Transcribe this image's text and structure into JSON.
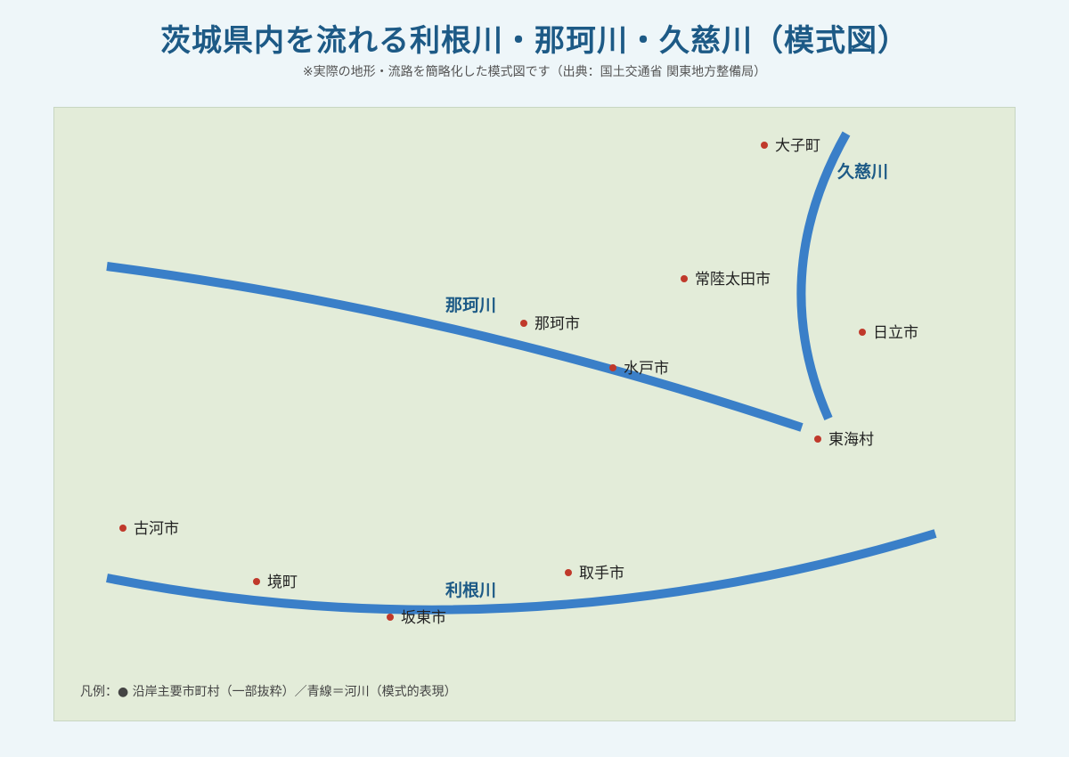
{
  "title": "茨城県内を流れる利根川・那珂川・久慈川（模式図）",
  "subtitle": "※実際の地形・流路を簡略化した模式図です（出典：国土交通省 関東地方整備局）",
  "legend": "凡例：● 沿岸主要市町村（一部抜粋）／青線＝河川（模式的表現）",
  "colors": {
    "title": "#1d5a86",
    "river": "#3a7fc8",
    "river_label": "#1d5a86",
    "city_dot": "#c0392b",
    "map_bg": "#e3ecd9"
  },
  "rivers": {
    "naka": {
      "label": "那珂川"
    },
    "tone": {
      "label": "利根川"
    },
    "kuji": {
      "label": "久慈川"
    }
  },
  "cities": [
    {
      "id": "daigo",
      "name": "大子町"
    },
    {
      "id": "hitachiota",
      "name": "常陸太田市"
    },
    {
      "id": "naka",
      "name": "那珂市"
    },
    {
      "id": "hitachi",
      "name": "日立市"
    },
    {
      "id": "mito",
      "name": "水戸市"
    },
    {
      "id": "tokai",
      "name": "東海村"
    },
    {
      "id": "koga",
      "name": "古河市"
    },
    {
      "id": "sakai",
      "name": "境町"
    },
    {
      "id": "toride",
      "name": "取手市"
    },
    {
      "id": "bando",
      "name": "坂東市"
    }
  ]
}
